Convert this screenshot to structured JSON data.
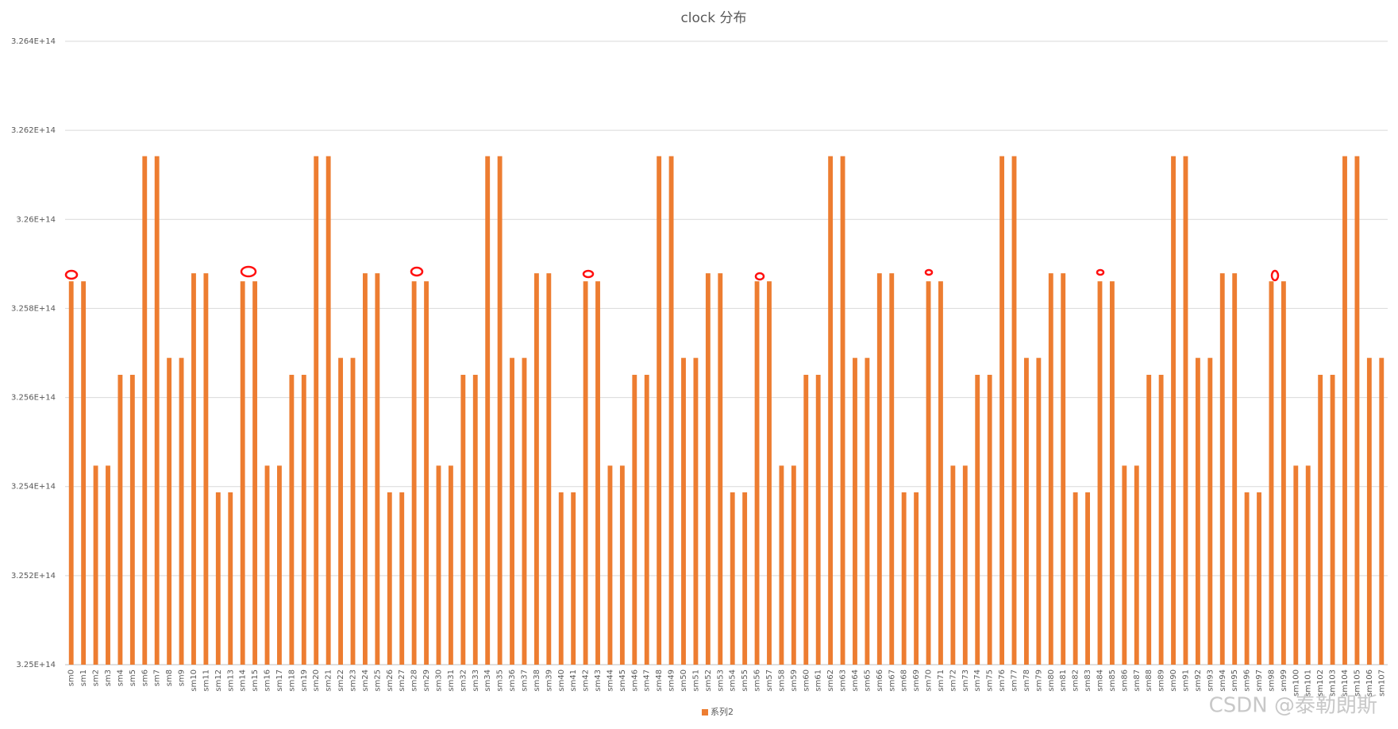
{
  "chart_data": {
    "type": "bar",
    "title": "clock 分布",
    "categories": [
      "sm0",
      "sm1",
      "sm2",
      "sm3",
      "sm4",
      "sm5",
      "sm6",
      "sm7",
      "sm8",
      "sm9",
      "sm10",
      "sm11",
      "sm12",
      "sm13",
      "sm14",
      "sm15",
      "sm16",
      "sm17",
      "sm18",
      "sm19",
      "sm20",
      "sm21",
      "sm22",
      "sm23",
      "sm24",
      "sm25",
      "sm26",
      "sm27",
      "sm28",
      "sm29",
      "sm30",
      "sm31",
      "sm32",
      "sm33",
      "sm34",
      "sm35",
      "sm36",
      "sm37",
      "sm38",
      "sm39",
      "sm40",
      "sm41",
      "sm42",
      "sm43",
      "sm44",
      "sm45",
      "sm46",
      "sm47",
      "sm48",
      "sm49",
      "sm50",
      "sm51",
      "sm52",
      "sm53",
      "sm54",
      "sm55",
      "sm56",
      "sm57",
      "sm58",
      "sm59",
      "sm60",
      "sm61",
      "sm62",
      "sm63",
      "sm64",
      "sm65",
      "sm66",
      "sm67",
      "sm68",
      "sm69",
      "sm70",
      "sm71",
      "sm72",
      "sm73",
      "sm74",
      "sm75",
      "sm76",
      "sm77",
      "sm78",
      "sm79",
      "sm80",
      "sm81",
      "sm82",
      "sm83",
      "sm84",
      "sm85",
      "sm86",
      "sm87",
      "sm88",
      "sm89",
      "sm90",
      "sm91",
      "sm92",
      "sm93",
      "sm94",
      "sm95",
      "sm96",
      "sm97",
      "sm98",
      "sm99",
      "sm100",
      "sm101",
      "sm102",
      "sm103",
      "sm104",
      "sm105",
      "sm106",
      "sm107"
    ],
    "series": [
      {
        "name": "系列2",
        "color": "#ED7D31",
        "values": [
          325861000000000.0,
          325861000000000.0,
          325447000000000.0,
          325447000000000.0,
          325651000000000.0,
          325651000000000.0,
          326142000000000.0,
          326142000000000.0,
          325689000000000.0,
          325689000000000.0,
          325879000000000.0,
          325879000000000.0,
          325387000000000.0,
          325387000000000.0,
          325861000000000.0,
          325861000000000.0,
          325447000000000.0,
          325447000000000.0,
          325651000000000.0,
          325651000000000.0,
          326142000000000.0,
          326142000000000.0,
          325689000000000.0,
          325689000000000.0,
          325879000000000.0,
          325879000000000.0,
          325387000000000.0,
          325387000000000.0,
          325861000000000.0,
          325861000000000.0,
          325447000000000.0,
          325447000000000.0,
          325651000000000.0,
          325651000000000.0,
          326142000000000.0,
          326142000000000.0,
          325689000000000.0,
          325689000000000.0,
          325879000000000.0,
          325879000000000.0,
          325387000000000.0,
          325387000000000.0,
          325861000000000.0,
          325861000000000.0,
          325447000000000.0,
          325447000000000.0,
          325651000000000.0,
          325651000000000.0,
          326142000000000.0,
          326142000000000.0,
          325689000000000.0,
          325689000000000.0,
          325879000000000.0,
          325879000000000.0,
          325387000000000.0,
          325387000000000.0,
          325861000000000.0,
          325861000000000.0,
          325447000000000.0,
          325447000000000.0,
          325651000000000.0,
          325651000000000.0,
          326142000000000.0,
          326142000000000.0,
          325689000000000.0,
          325689000000000.0,
          325879000000000.0,
          325879000000000.0,
          325387000000000.0,
          325387000000000.0,
          325861000000000.0,
          325861000000000.0,
          325447000000000.0,
          325447000000000.0,
          325651000000000.0,
          325651000000000.0,
          326142000000000.0,
          326142000000000.0,
          325689000000000.0,
          325689000000000.0,
          325879000000000.0,
          325879000000000.0,
          325387000000000.0,
          325387000000000.0,
          325861000000000.0,
          325861000000000.0,
          325447000000000.0,
          325447000000000.0,
          325651000000000.0,
          325651000000000.0,
          326142000000000.0,
          326142000000000.0,
          325689000000000.0,
          325689000000000.0,
          325879000000000.0,
          325879000000000.0,
          325387000000000.0,
          325387000000000.0,
          325861000000000.0,
          325861000000000.0,
          325447000000000.0,
          325447000000000.0,
          325651000000000.0,
          325651000000000.0,
          326142000000000.0,
          326142000000000.0,
          325689000000000.0,
          325689000000000.0
        ]
      }
    ],
    "ylim": [
      325000000000000.0,
      326400000000000.0
    ],
    "yticks": [
      {
        "value": 325000000000000.0,
        "label": "3.25E+14"
      },
      {
        "value": 325200000000000.0,
        "label": "3.252E+14"
      },
      {
        "value": 325400000000000.0,
        "label": "3.254E+14"
      },
      {
        "value": 325600000000000.0,
        "label": "3.256E+14"
      },
      {
        "value": 325800000000000.0,
        "label": "3.258E+14"
      },
      {
        "value": 326000000000000.0,
        "label": "3.26E+14"
      },
      {
        "value": 326200000000000.0,
        "label": "3.262E+14"
      },
      {
        "value": 326400000000000.0,
        "label": "3.264E+14"
      }
    ],
    "grid": true,
    "legend": "bottom"
  },
  "watermark": "CSDN @泰勒朗斯"
}
